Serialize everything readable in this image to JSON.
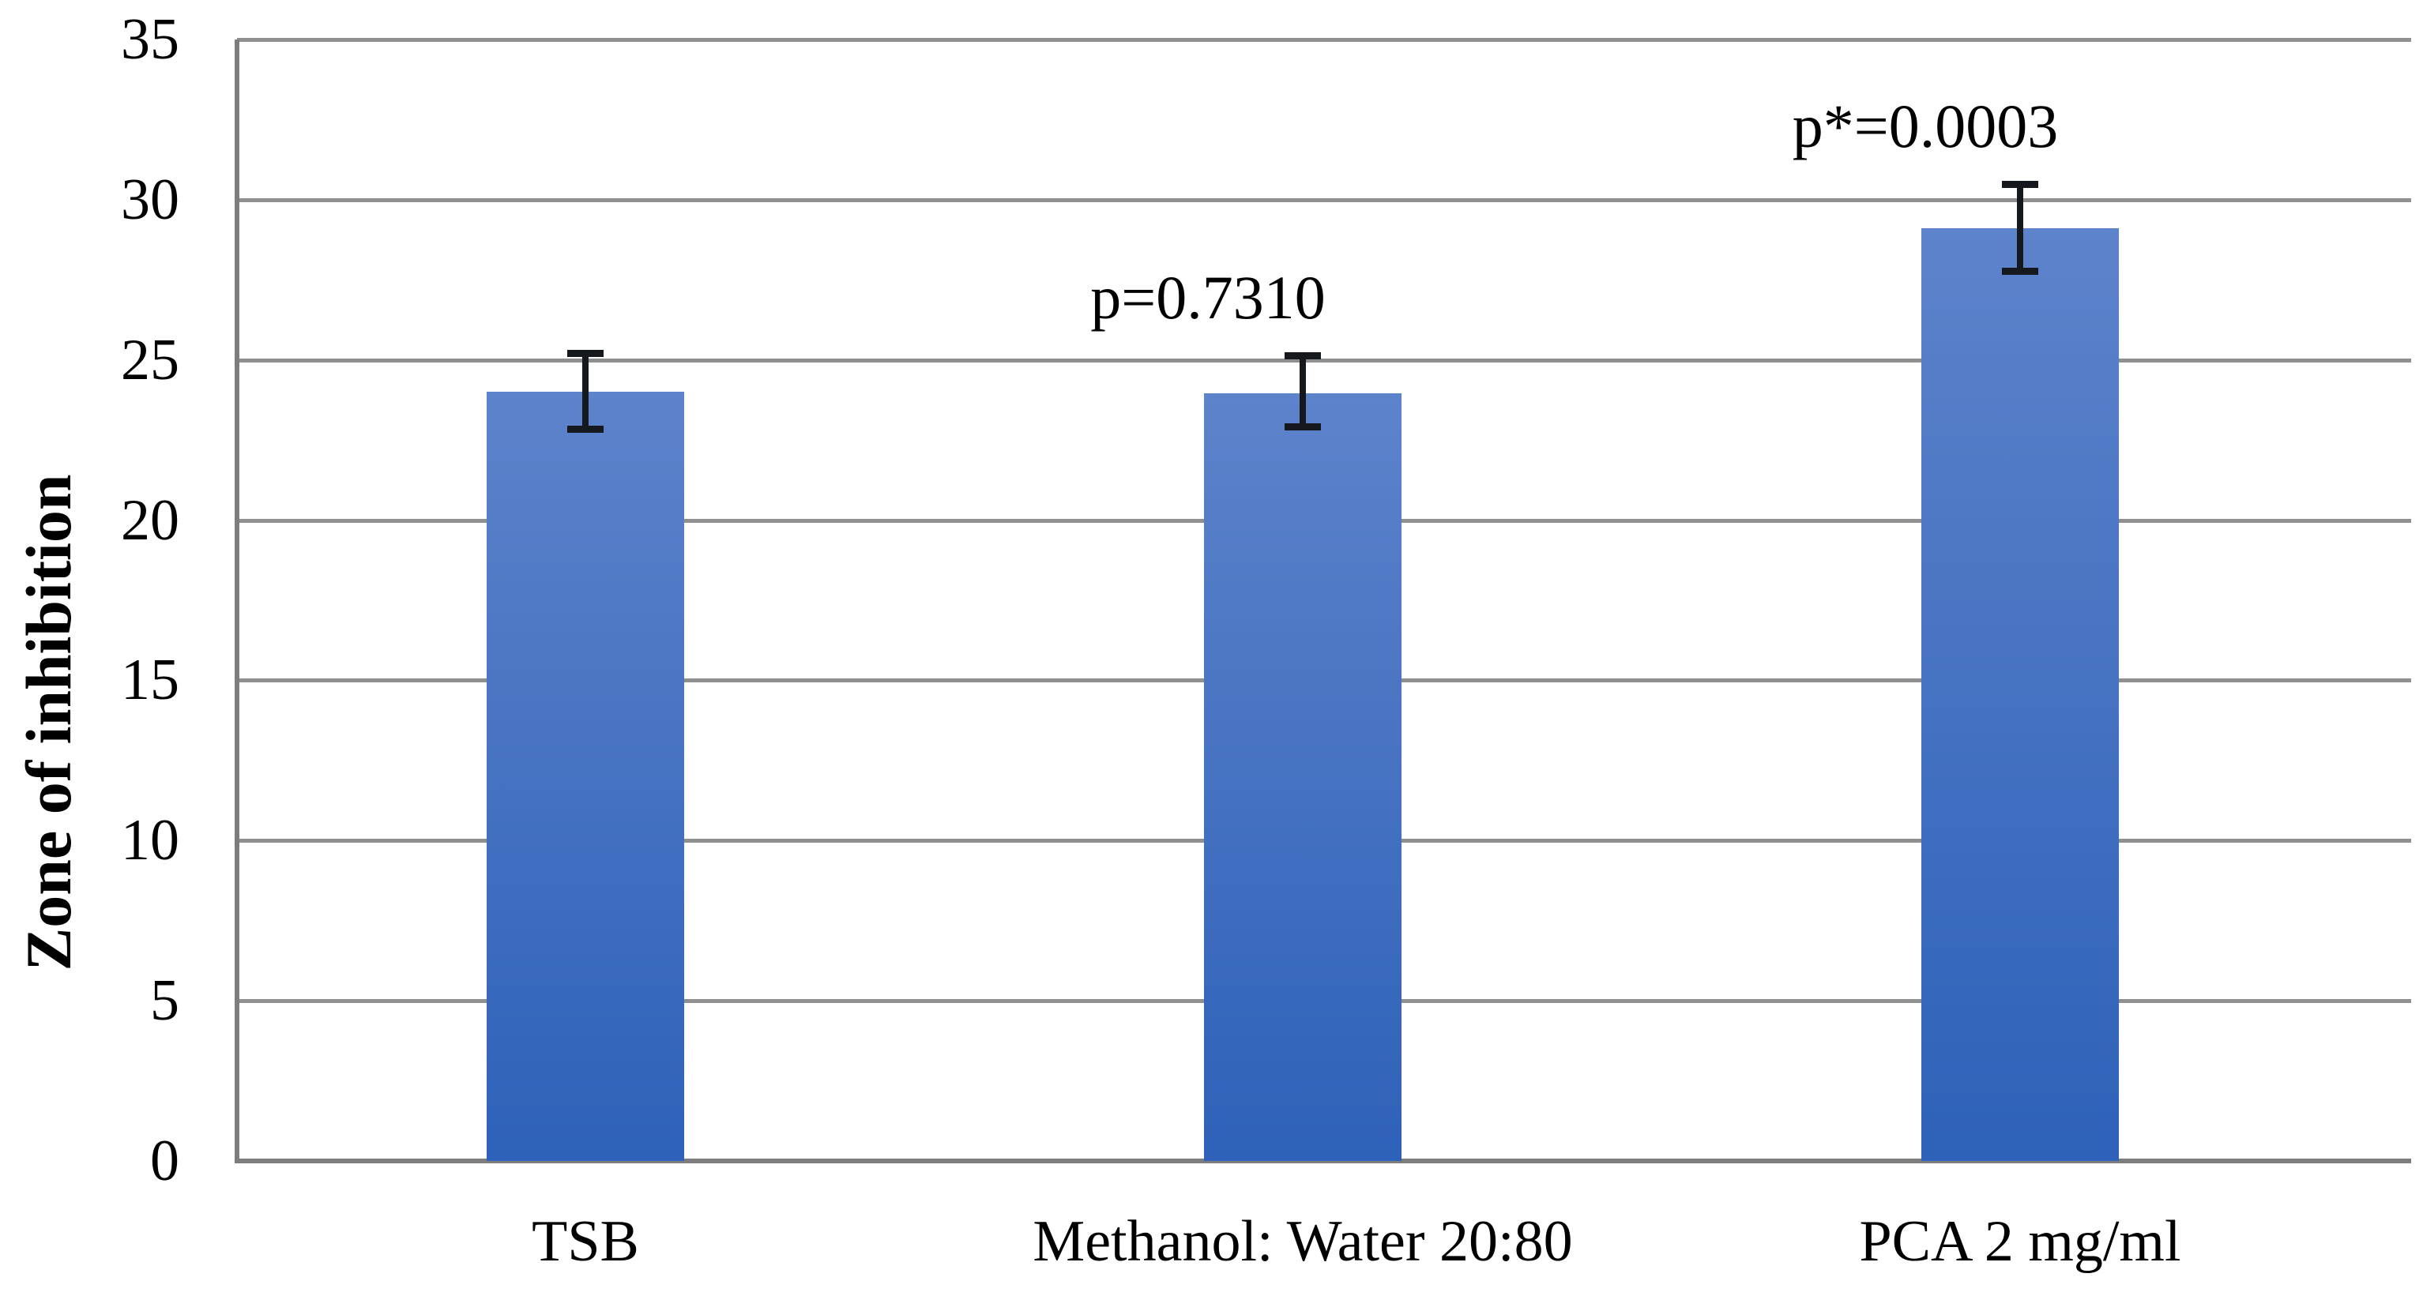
{
  "chart_data": {
    "type": "bar",
    "title": "",
    "xlabel": "",
    "ylabel": "Zone of inhibition",
    "categories": [
      "TSB",
      "Methanol: Water 20:80",
      "PCA 2 mg/ml"
    ],
    "values": [
      24.0,
      23.95,
      29.1
    ],
    "error_high": [
      25.27,
      25.2,
      30.55
    ],
    "error_low": [
      22.78,
      22.85,
      27.7
    ],
    "annotations": [
      "",
      "p=0.7310",
      "p*=0.0003"
    ],
    "ylim": [
      0,
      35
    ],
    "yticks": [
      0,
      5,
      10,
      15,
      20,
      25,
      30,
      35
    ],
    "grid": "horizontal",
    "legend": "none",
    "colors": {
      "bar_gradient_top": "#5d83cb",
      "bar_gradient_bottom": "#2e61b9",
      "gridline": "#8f8f8f",
      "axis": "#7d7d7d",
      "error_bar": "#15181d",
      "text": "#000000"
    }
  }
}
